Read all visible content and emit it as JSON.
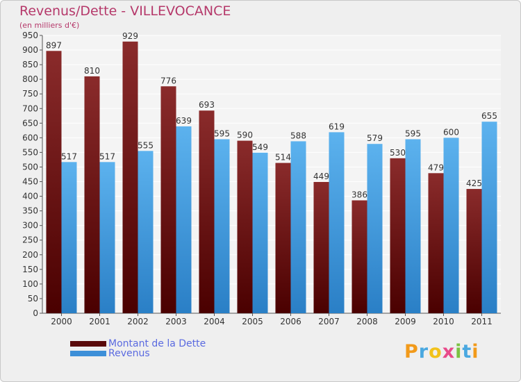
{
  "chart_data": {
    "type": "bar",
    "title": "Revenus/Dette - VILLEVOCANCE",
    "subtitle": "(en milliers d'€)",
    "categories": [
      "2000",
      "2001",
      "2002",
      "2003",
      "2004",
      "2005",
      "2006",
      "2007",
      "2008",
      "2009",
      "2010",
      "2011"
    ],
    "series": [
      {
        "name": "Montant de la Dette",
        "color": "#7a1818",
        "values": [
          897,
          810,
          929,
          776,
          693,
          590,
          514,
          449,
          386,
          530,
          479,
          425
        ]
      },
      {
        "name": "Revenus",
        "color": "#4aa3e6",
        "values": [
          517,
          517,
          555,
          639,
          595,
          549,
          588,
          619,
          579,
          595,
          600,
          655
        ]
      }
    ],
    "ylim": [
      0,
      950
    ],
    "ytick_step": 50,
    "grid": true,
    "legend_position": "bottom-left"
  },
  "legend": {
    "items": [
      {
        "label": "Montant de la Dette",
        "color": "#5a0a0a"
      },
      {
        "label": "Revenus",
        "color": "#3d8fd8"
      }
    ]
  },
  "logo": {
    "letters": [
      "P",
      "r",
      "o",
      "x",
      "i",
      "t",
      "i"
    ],
    "colors": [
      "#f29a1a",
      "#4aa8e0",
      "#f2c21a",
      "#e84a8a",
      "#7cc242",
      "#4aa8e0",
      "#f29a1a"
    ]
  }
}
